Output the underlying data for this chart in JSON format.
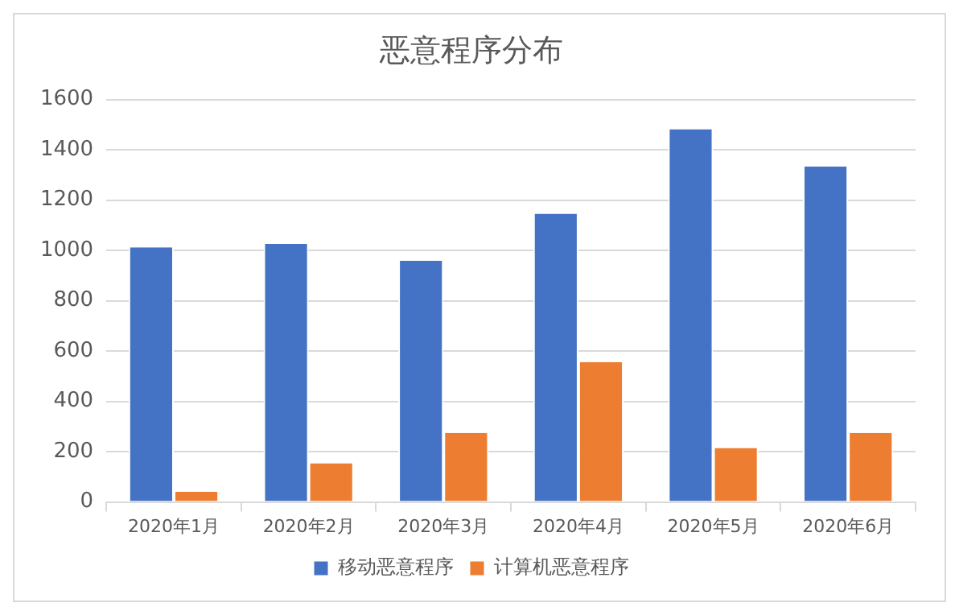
{
  "chart_data": {
    "type": "bar",
    "title": "恶意程序分布",
    "categories": [
      "2020年1月",
      "2020年2月",
      "2020年3月",
      "2020年4月",
      "2020年5月",
      "2020年6月"
    ],
    "series": [
      {
        "name": "移动恶意程序",
        "color": "#4472c4",
        "values": [
          1012,
          1026,
          959,
          1146,
          1482,
          1334
        ]
      },
      {
        "name": "计算机恶意程序",
        "color": "#ed7d31",
        "values": [
          40,
          154,
          275,
          556,
          215,
          275
        ]
      }
    ],
    "ylim": [
      0,
      1600
    ],
    "yticks": [
      0,
      200,
      400,
      600,
      800,
      1000,
      1200,
      1400,
      1600
    ],
    "grid": "y",
    "legend": "bottom"
  }
}
